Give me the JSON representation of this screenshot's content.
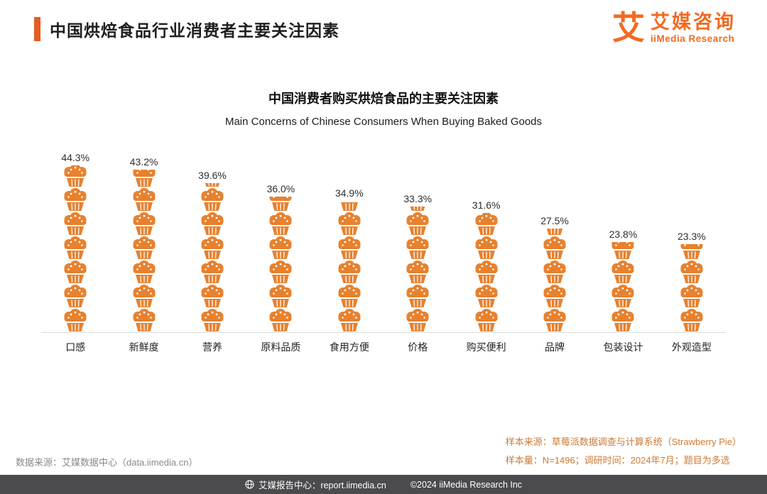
{
  "header": {
    "title": "中国烘焙食品行业消费者主要关注因素",
    "logo": {
      "mark": "艾",
      "brand_cn": "艾媒咨询",
      "brand_en": "iiMedia Research"
    }
  },
  "chart_data": {
    "type": "bar",
    "style": "pictogram-stacked-muffins",
    "title": "中国消费者购买烘焙食品的主要关注因素",
    "subtitle": "Main Concerns of Chinese Consumers When Buying Baked Goods",
    "categories": [
      "口感",
      "新鲜度",
      "营养",
      "原料品质",
      "食用方便",
      "价格",
      "购买便利",
      "品牌",
      "包装设计",
      "外观造型"
    ],
    "values": [
      44.3,
      43.2,
      39.6,
      36.0,
      34.9,
      33.3,
      31.6,
      27.5,
      23.8,
      23.3
    ],
    "unit": "%",
    "ylim": [
      0,
      50
    ],
    "grid": false,
    "legend": "none",
    "bar_color": "#E8812E"
  },
  "footnotes": {
    "source_left": "数据来源：艾媒数据中心（data.iimedia.cn）",
    "sample_source": "样本来源：草莓派数据调查与计算系统（Strawberry Pie）",
    "sample_info": "样本量：N=1496；调研时间：2024年7月；题目为多选"
  },
  "footer": {
    "report_center": "艾媒报告中心：report.iimedia.cn",
    "copyright": "©2024 iiMedia Research Inc"
  },
  "colors": {
    "accent": "#E65C20",
    "brand": "#F26A21",
    "bar": "#E8812E",
    "footnote_orange": "#CE7A33",
    "footer_bg": "#4B4B4D"
  }
}
